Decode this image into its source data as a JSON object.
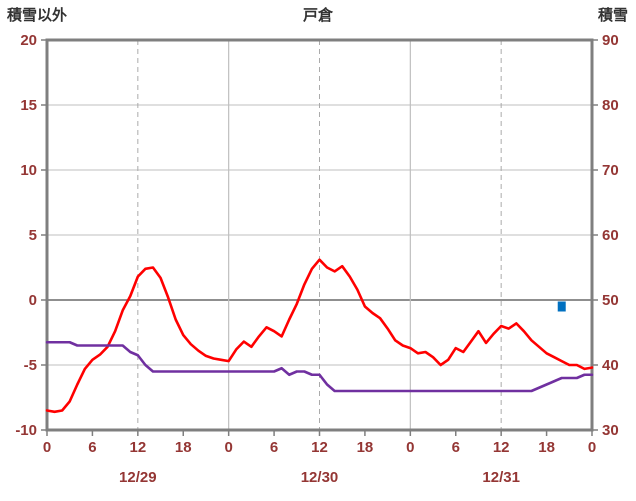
{
  "chart_data": {
    "type": "line",
    "title": "戸倉",
    "left_axis_label": "積雪以外",
    "right_axis_label": "積雪",
    "left_axis": {
      "min": -10,
      "max": 20,
      "ticks": [
        -10,
        -5,
        0,
        5,
        10,
        15,
        20
      ],
      "emphasized_tick": 0
    },
    "right_axis": {
      "min": 30,
      "max": 90,
      "ticks": [
        30,
        40,
        50,
        60,
        70,
        80,
        90
      ]
    },
    "x_axis": {
      "min": 0,
      "max": 72,
      "tick_hours": [
        0,
        6,
        12,
        18,
        24,
        30,
        36,
        42,
        48,
        54,
        60,
        66,
        72
      ],
      "tick_labels": [
        "0",
        "6",
        "12",
        "18",
        "0",
        "6",
        "12",
        "18",
        "0",
        "6",
        "12",
        "18",
        "0"
      ],
      "solid_gridline_hours": [
        24,
        48
      ],
      "dashed_gridline_hours": [
        12,
        36,
        60
      ],
      "date_labels": [
        {
          "hour": 12,
          "label": "12/29"
        },
        {
          "hour": 36,
          "label": "12/30"
        },
        {
          "hour": 60,
          "label": "12/31"
        }
      ]
    },
    "series": [
      {
        "name": "積雪以外",
        "axis": "left",
        "color": "#FF0000",
        "hours_start": 0,
        "hours_step": 1,
        "values": [
          -8.5,
          -8.6,
          -8.5,
          -7.8,
          -6.5,
          -5.3,
          -4.6,
          -4.2,
          -3.6,
          -2.4,
          -0.8,
          0.3,
          1.8,
          2.4,
          2.5,
          1.7,
          0.2,
          -1.5,
          -2.7,
          -3.4,
          -3.9,
          -4.3,
          -4.5,
          -4.6,
          -4.7,
          -3.8,
          -3.2,
          -3.6,
          -2.8,
          -2.1,
          -2.4,
          -2.8,
          -1.5,
          -0.3,
          1.2,
          2.4,
          3.1,
          2.5,
          2.2,
          2.6,
          1.8,
          0.8,
          -0.5,
          -1.0,
          -1.4,
          -2.2,
          -3.1,
          -3.5,
          -3.7,
          -4.1,
          -4.0,
          -4.4,
          -5.0,
          -4.6,
          -3.7,
          -4.0,
          -3.2,
          -2.4,
          -3.3,
          -2.6,
          -2.0,
          -2.2,
          -1.8,
          -2.4,
          -3.1,
          -3.6,
          -4.1,
          -4.4,
          -4.7,
          -5.0,
          -5.0,
          -5.3,
          -5.2
        ]
      },
      {
        "name": "積雪",
        "axis": "right",
        "color": "#7030A0",
        "hours_start": 0,
        "hours_step": 1,
        "values": [
          43.5,
          43.5,
          43.5,
          43.5,
          43,
          43,
          43,
          43,
          43,
          43,
          43,
          42,
          41.5,
          40,
          39,
          39,
          39,
          39,
          39,
          39,
          39,
          39,
          39,
          39,
          39,
          39,
          39,
          39,
          39,
          39,
          39,
          39.5,
          38.5,
          39,
          39,
          38.5,
          38.5,
          37,
          36,
          36,
          36,
          36,
          36,
          36,
          36,
          36,
          36,
          36,
          36,
          36,
          36,
          36,
          36,
          36,
          36,
          36,
          36,
          36,
          36,
          36,
          36,
          36,
          36,
          36,
          36,
          36.5,
          37,
          37.5,
          38,
          38,
          38,
          38.5,
          38.5
        ]
      }
    ],
    "point_marker": {
      "name": "積雪",
      "hour": 68,
      "value": 49,
      "axis": "right",
      "color": "#0070C0",
      "shape": "square"
    },
    "colors": {
      "border": "#7F7F7F",
      "grid": "#BFBFBF",
      "zero_line": "#7F7F7F",
      "dashed_grid": "#ABABAB",
      "tick_text": "#943634",
      "title_text": "#333333",
      "background": "#FFFFFF"
    },
    "grid": true,
    "legend_position": "none"
  }
}
